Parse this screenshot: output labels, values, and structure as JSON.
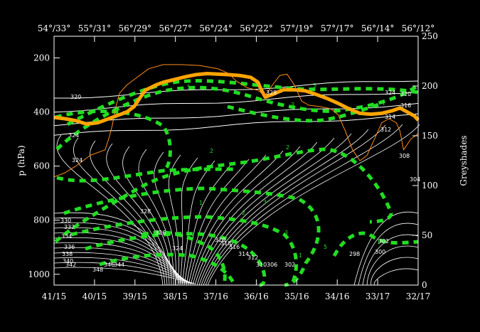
{
  "chart_data": {
    "type": "line",
    "title": "",
    "colors": {
      "background": "#000000",
      "isentropes": "#ffffff",
      "green_contours": "#22dd22",
      "thick_orange": "#ffa500",
      "thin_orange": "#ff8c1a"
    },
    "axes": {
      "bottom_ticks": [
        "41/15",
        "40/15",
        "39/15",
        "38/15",
        "37/16",
        "36/16",
        "35/16",
        "34/16",
        "33/17",
        "32/17"
      ],
      "top_ticks": [
        "54°/33°",
        "55°/31°",
        "56°/29°",
        "56°/27°",
        "56°/24°",
        "56°/22°",
        "57°/19°",
        "57°/17°",
        "56°/14°",
        "56°/12°"
      ],
      "left_label": "p (hPa)",
      "left_ticks": [
        200,
        400,
        600,
        800,
        1000
      ],
      "left_range": [
        120,
        1040
      ],
      "right_label": "Greyshades",
      "right_ticks": [
        0,
        50,
        100,
        150,
        200,
        250
      ],
      "right_range": [
        0,
        250
      ]
    },
    "isentrope_labels": [
      "320",
      "324",
      "324",
      "328",
      "324",
      "320",
      "316",
      "314",
      "312",
      "308",
      "304",
      "302",
      "300",
      "298",
      "302",
      "306",
      "310",
      "312",
      "314",
      "316",
      "318",
      "320",
      "324",
      "326",
      "328",
      "330",
      "332",
      "334",
      "336",
      "338",
      "340",
      "342",
      "344",
      "346",
      "348"
    ],
    "green_labels": [
      "5",
      "3",
      "2",
      "1",
      "5",
      "3",
      "2",
      "1",
      "1",
      "2",
      "3",
      "5"
    ],
    "series": [
      {
        "role": "thick_orange",
        "points": [
          [
            0,
            420
          ],
          [
            3,
            425
          ],
          [
            6,
            432
          ],
          [
            9,
            445
          ],
          [
            12,
            440
          ],
          [
            15,
            425
          ],
          [
            18,
            410
          ],
          [
            20,
            400
          ],
          [
            22,
            380
          ],
          [
            25,
            320
          ],
          [
            28,
            300
          ],
          [
            30,
            290
          ],
          [
            33,
            280
          ],
          [
            36,
            270
          ],
          [
            39,
            262
          ],
          [
            42,
            258
          ],
          [
            45,
            260
          ],
          [
            48,
            262
          ],
          [
            51,
            265
          ],
          [
            54,
            272
          ],
          [
            56,
            290
          ],
          [
            57,
            320
          ],
          [
            58,
            345
          ],
          [
            60,
            335
          ],
          [
            63,
            318
          ],
          [
            66,
            318
          ],
          [
            69,
            322
          ],
          [
            72,
            335
          ],
          [
            75,
            350
          ],
          [
            78,
            368
          ],
          [
            81,
            388
          ],
          [
            84,
            405
          ],
          [
            87,
            408
          ],
          [
            90,
            405
          ],
          [
            93,
            395
          ],
          [
            95,
            385
          ],
          [
            97,
            400
          ],
          [
            99,
            415
          ],
          [
            100,
            430
          ]
        ]
      },
      {
        "role": "thin_orange",
        "points": [
          [
            0,
            640
          ],
          [
            3,
            625
          ],
          [
            6,
            600
          ],
          [
            10,
            560
          ],
          [
            14,
            540
          ],
          [
            15,
            500
          ],
          [
            16,
            450
          ],
          [
            17,
            380
          ],
          [
            18,
            330
          ],
          [
            20,
            300
          ],
          [
            22,
            280
          ],
          [
            26,
            240
          ],
          [
            30,
            225
          ],
          [
            35,
            225
          ],
          [
            40,
            228
          ],
          [
            45,
            240
          ],
          [
            48,
            258
          ],
          [
            50,
            285
          ],
          [
            53,
            310
          ],
          [
            56,
            320
          ],
          [
            58,
            340
          ],
          [
            60,
            300
          ],
          [
            62,
            265
          ],
          [
            64,
            260
          ],
          [
            66,
            300
          ],
          [
            68,
            360
          ],
          [
            70,
            375
          ],
          [
            73,
            380
          ],
          [
            76,
            388
          ],
          [
            78,
            410
          ],
          [
            80,
            470
          ],
          [
            82,
            540
          ],
          [
            84,
            580
          ],
          [
            86,
            560
          ],
          [
            88,
            500
          ],
          [
            90,
            440
          ],
          [
            92,
            425
          ],
          [
            94,
            440
          ],
          [
            95,
            470
          ],
          [
            96,
            540
          ],
          [
            98,
            500
          ],
          [
            100,
            480
          ]
        ]
      }
    ]
  }
}
